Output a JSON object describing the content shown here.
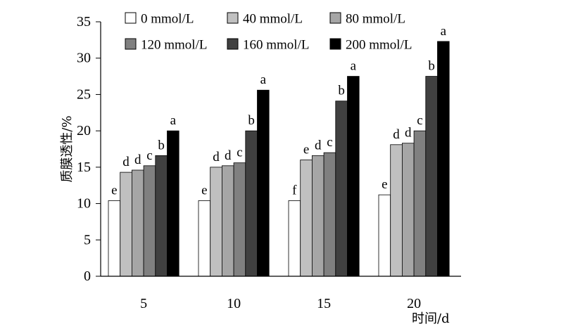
{
  "chart_data": {
    "type": "bar",
    "title": "",
    "ylabel": "质膜透性/%",
    "xlabel": "时间/d",
    "ylim": [
      0,
      35
    ],
    "yticks": [
      0,
      5,
      10,
      15,
      20,
      25,
      30,
      35
    ],
    "categories": [
      "5",
      "10",
      "15",
      "20"
    ],
    "legend_position": "top",
    "series": [
      {
        "name": "0 mmol/L",
        "color": "#ffffff",
        "values": [
          10.4,
          10.4,
          10.4,
          11.2
        ],
        "letters": [
          "e",
          "e",
          "f",
          "e"
        ]
      },
      {
        "name": "40 mmol/L",
        "color": "#c0c0c0",
        "values": [
          14.3,
          15.0,
          16.0,
          18.1
        ],
        "letters": [
          "d",
          "d",
          "e",
          "d"
        ]
      },
      {
        "name": "80 mmol/L",
        "color": "#a6a6a6",
        "values": [
          14.6,
          15.2,
          16.6,
          18.3
        ],
        "letters": [
          "d",
          "d",
          "d",
          "d"
        ]
      },
      {
        "name": "120 mmol/L",
        "color": "#808080",
        "values": [
          15.2,
          15.6,
          17.0,
          20.0
        ],
        "letters": [
          "c",
          "c",
          "c",
          "c"
        ]
      },
      {
        "name": "160 mmol/L",
        "color": "#404040",
        "values": [
          16.6,
          20.0,
          24.1,
          27.5
        ],
        "letters": [
          "b",
          "b",
          "b",
          "b"
        ]
      },
      {
        "name": "200 mmol/L",
        "color": "#000000",
        "values": [
          20.0,
          25.6,
          27.5,
          32.3
        ],
        "letters": [
          "a",
          "a",
          "a",
          "a"
        ]
      }
    ]
  }
}
